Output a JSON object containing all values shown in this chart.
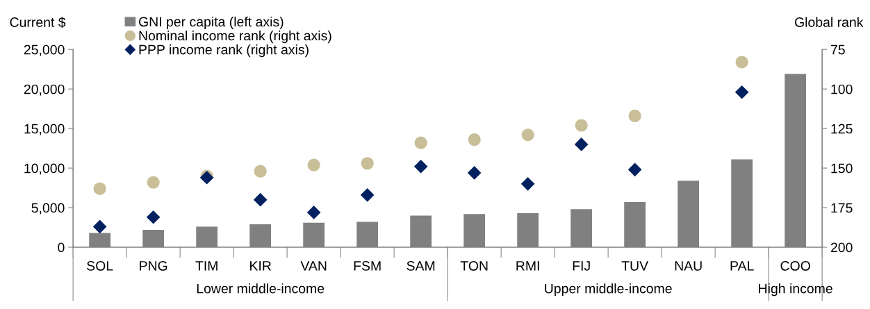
{
  "chart_data": {
    "type": "bar",
    "ylabel": "Current $",
    "y2label": "Global rank",
    "categories": [
      "SOL",
      "PNG",
      "TIM",
      "KIR",
      "VAN",
      "FSM",
      "SAM",
      "TON",
      "RMI",
      "FIJ",
      "TUV",
      "NAU",
      "PAL",
      "COO"
    ],
    "series": [
      {
        "name": "GNI per capita (left axis)",
        "color": "#808080",
        "values": [
          1800,
          2200,
          2600,
          2900,
          3100,
          3200,
          4000,
          4200,
          4300,
          4800,
          5700,
          8400,
          11100,
          21900
        ]
      },
      {
        "name": "Nominal income rank (right axis)",
        "type": "scatter",
        "axis": "y2",
        "marker": "circle",
        "color": "#c8bf98",
        "values": [
          163,
          159,
          155,
          152,
          148,
          147,
          134,
          132,
          129,
          123,
          117,
          null,
          83,
          null
        ]
      },
      {
        "name": "PPP income rank (right axis)",
        "type": "scatter",
        "axis": "y2",
        "marker": "diamond",
        "color": "#002060",
        "values": [
          187,
          181,
          156,
          170,
          178,
          167,
          149,
          153,
          160,
          135,
          151,
          null,
          102,
          null
        ]
      }
    ],
    "ylim": [
      0,
      25000
    ],
    "yticks": [
      {
        "value": 0,
        "label": "0"
      },
      {
        "value": 5000,
        "label": "5,000"
      },
      {
        "value": 10000,
        "label": "10,000"
      },
      {
        "value": 15000,
        "label": "15,000"
      },
      {
        "value": 20000,
        "label": "20,000"
      },
      {
        "value": 25000,
        "label": "25,000"
      }
    ],
    "y2lim": [
      200,
      75
    ],
    "y2ticks": [
      75,
      100,
      125,
      150,
      175,
      200
    ],
    "annotations": [
      "Lower middle-income",
      "Upper middle-income",
      "High income"
    ],
    "grid": false,
    "legend": "top left"
  }
}
